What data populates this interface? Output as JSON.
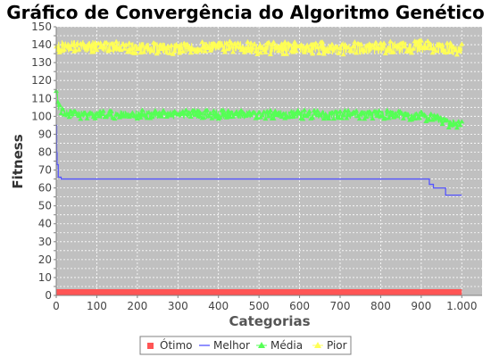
{
  "chart_data": {
    "type": "line",
    "title": "Gráfico de Convergência do Algoritmo Genético",
    "xlabel": "Categorias",
    "ylabel": "Fitness",
    "xlim": [
      0,
      1050
    ],
    "ylim": [
      0,
      150
    ],
    "xticks": [
      0,
      100,
      200,
      300,
      400,
      500,
      600,
      700,
      800,
      900,
      1000
    ],
    "xtick_labels": [
      "0",
      "100",
      "200",
      "300",
      "400",
      "500",
      "600",
      "700",
      "800",
      "900",
      "1.000"
    ],
    "yticks": [
      0,
      5,
      10,
      15,
      20,
      25,
      30,
      35,
      40,
      45,
      50,
      55,
      60,
      65,
      70,
      75,
      80,
      85,
      90,
      95,
      100,
      105,
      110,
      115,
      120,
      125,
      130,
      135,
      140,
      145,
      150
    ],
    "grid": true,
    "legend_position": "bottom",
    "background_color": "#c0c0c0",
    "series": [
      {
        "name": "Ótimo",
        "color": "#ff5555",
        "style": "band",
        "x": [
          0,
          1000
        ],
        "values": [
          0,
          0
        ]
      },
      {
        "name": "Melhor",
        "color": "#5555ff",
        "style": "step",
        "x": [
          0,
          1,
          2,
          3,
          5,
          8,
          12,
          20,
          910,
          920,
          930,
          955,
          960,
          1000
        ],
        "values": [
          95,
          80,
          73,
          73,
          66,
          66,
          65,
          65,
          65,
          62,
          60,
          60,
          56,
          56
        ]
      },
      {
        "name": "Média",
        "color": "#55ff55",
        "style": "noisy-line",
        "noise": 2.5,
        "x": [
          0,
          2,
          5,
          10,
          20,
          50,
          100,
          200,
          300,
          400,
          500,
          600,
          700,
          800,
          900,
          920,
          940,
          960,
          980,
          1000
        ],
        "values": [
          115,
          112,
          106,
          104,
          102,
          101,
          101,
          101,
          101,
          101,
          101,
          101,
          101,
          101,
          100,
          99,
          98,
          96,
          96,
          95
        ]
      },
      {
        "name": "Pior",
        "color": "#ffff55",
        "style": "noisy-line",
        "noise": 3.5,
        "x": [
          0,
          5,
          10,
          50,
          100,
          200,
          300,
          400,
          500,
          600,
          700,
          800,
          900,
          950,
          1000
        ],
        "values": [
          138,
          138,
          139,
          139,
          139,
          138,
          138,
          139,
          138,
          138,
          138,
          138,
          139,
          138,
          137
        ]
      }
    ]
  }
}
